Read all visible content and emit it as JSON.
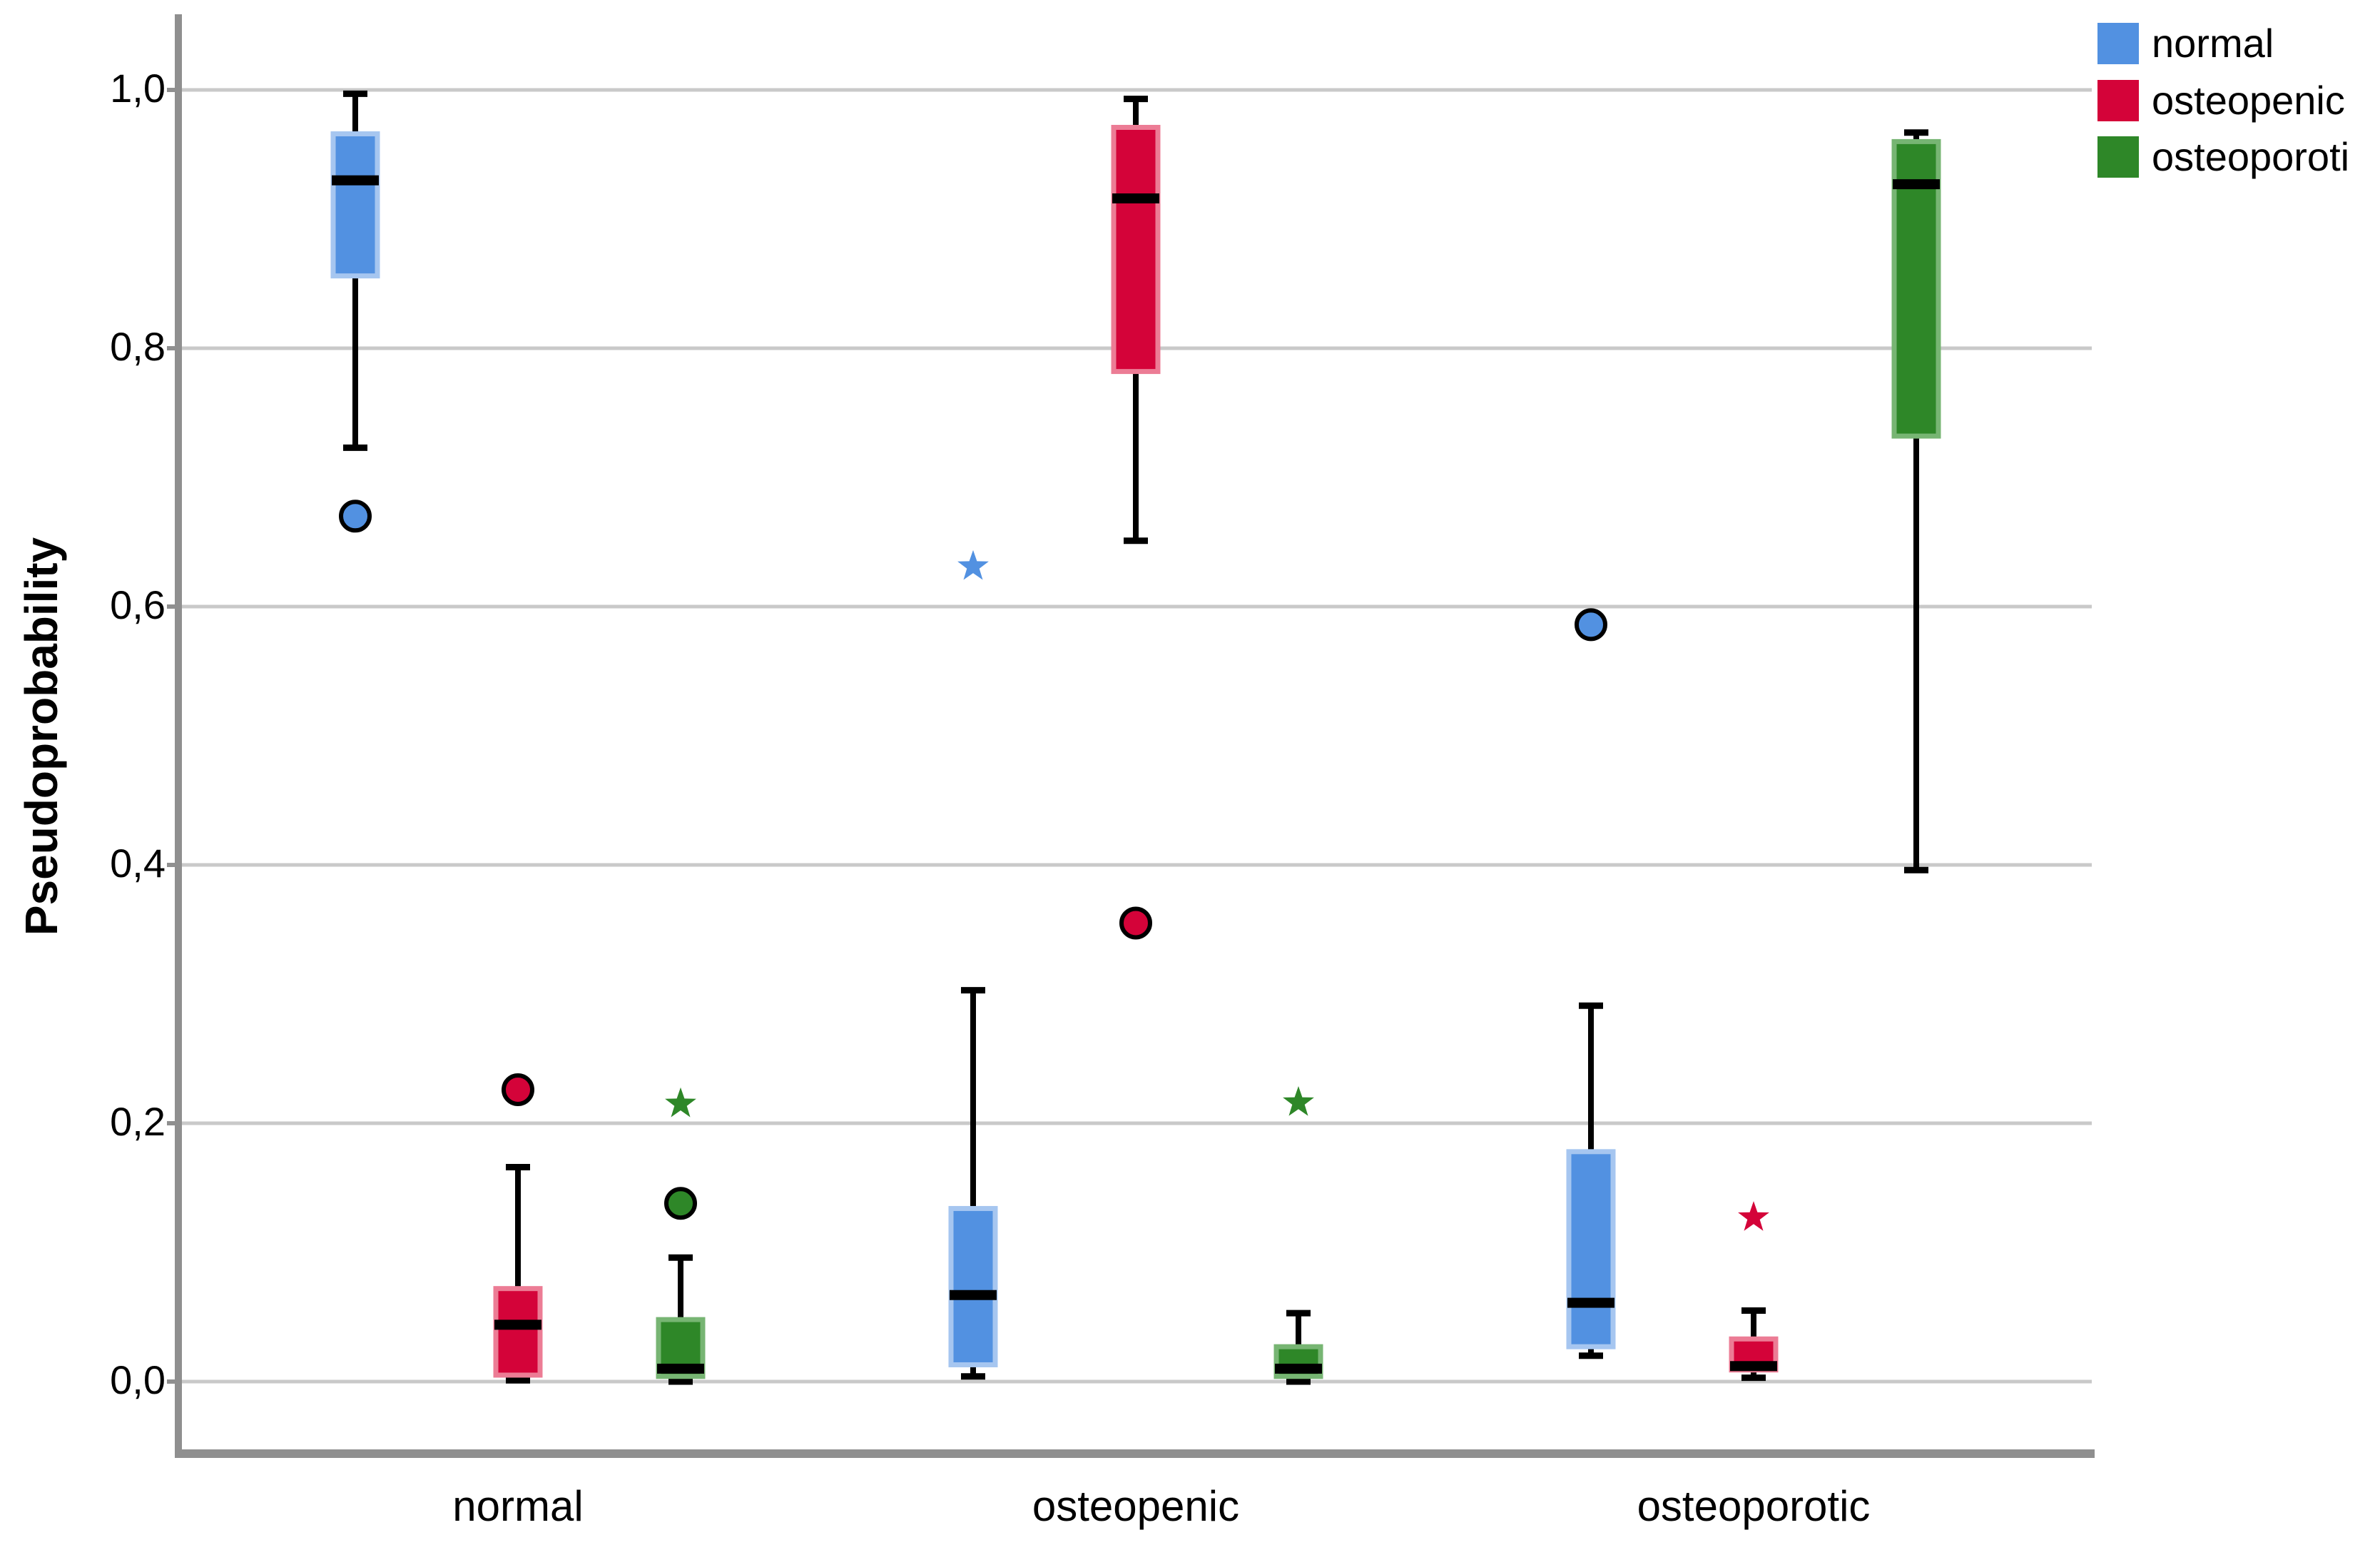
{
  "chart_data": {
    "type": "boxplot",
    "title": "",
    "xlabel": "",
    "ylabel": "Pseudoprobability",
    "ylim": [
      0.0,
      1.0
    ],
    "grid": "horizontal",
    "decimal_separator": ",",
    "categories": [
      "normal",
      "osteopenic",
      "osteoporotic"
    ],
    "y_ticks": [
      {
        "value": 0.0,
        "label": "0,0"
      },
      {
        "value": 0.2,
        "label": "0,2"
      },
      {
        "value": 0.4,
        "label": "0,4"
      },
      {
        "value": 0.6,
        "label": "0,6"
      },
      {
        "value": 0.8,
        "label": "0,8"
      },
      {
        "value": 1.0,
        "label": "1,0"
      }
    ],
    "legend": {
      "position": "top-right",
      "items": [
        {
          "label": "normal",
          "color": "#5291E1"
        },
        {
          "label": "osteopenic",
          "color": "#D40339"
        },
        {
          "label": "osteoporoti",
          "color": "#2E8728"
        }
      ]
    },
    "series": [
      {
        "name": "normal",
        "color": "#5291E1",
        "edge_color": "#A6C6F0",
        "boxes": [
          {
            "category": "normal",
            "min": 0.723,
            "q1": 0.856,
            "median": 0.93,
            "q3": 0.966,
            "max": 0.997,
            "outliers": [
              0.67
            ],
            "extremes": []
          },
          {
            "category": "osteopenic",
            "min": 0.004,
            "q1": 0.013,
            "median": 0.067,
            "q3": 0.134,
            "max": 0.303,
            "outliers": [],
            "extremes": [
              0.631
            ]
          },
          {
            "category": "osteoporotic",
            "min": 0.02,
            "q1": 0.027,
            "median": 0.061,
            "q3": 0.178,
            "max": 0.291,
            "outliers": [
              0.586
            ],
            "extremes": []
          }
        ]
      },
      {
        "name": "osteopenic",
        "color": "#D40339",
        "edge_color": "#EC7C95",
        "boxes": [
          {
            "category": "normal",
            "min": 0.001,
            "q1": 0.005,
            "median": 0.044,
            "q3": 0.072,
            "max": 0.166,
            "outliers": [
              0.226
            ],
            "extremes": []
          },
          {
            "category": "osteopenic",
            "min": 0.651,
            "q1": 0.782,
            "median": 0.916,
            "q3": 0.971,
            "max": 0.993,
            "outliers": [
              0.355
            ],
            "extremes": []
          },
          {
            "category": "osteoporotic",
            "min": 0.003,
            "q1": 0.009,
            "median": 0.012,
            "q3": 0.033,
            "max": 0.055,
            "outliers": [],
            "extremes": [
              0.127
            ]
          }
        ]
      },
      {
        "name": "osteoporotic",
        "color": "#2E8728",
        "edge_color": "#77B573",
        "boxes": [
          {
            "category": "normal",
            "min": 0.0,
            "q1": 0.004,
            "median": 0.01,
            "q3": 0.048,
            "max": 0.096,
            "outliers": [
              0.138
            ],
            "extremes": [
              0.215
            ]
          },
          {
            "category": "osteopenic",
            "min": 0.0,
            "q1": 0.004,
            "median": 0.01,
            "q3": 0.027,
            "max": 0.053,
            "outliers": [],
            "extremes": [
              0.216
            ]
          },
          {
            "category": "osteoporotic",
            "min": 0.396,
            "q1": 0.732,
            "median": 0.927,
            "q3": 0.96,
            "max": 0.967,
            "outliers": [],
            "extremes": []
          }
        ]
      }
    ],
    "colors": {
      "axis": "#8F8F8F",
      "gridline": "#C9C9C9",
      "median": "#000000",
      "whisker": "#000000"
    }
  }
}
